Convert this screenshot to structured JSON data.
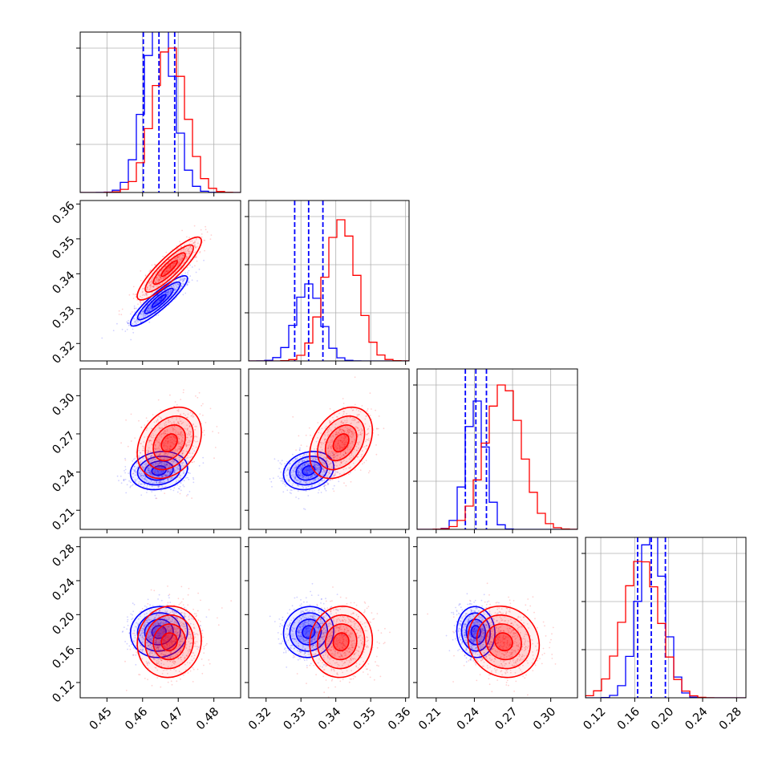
{
  "chart_data": {
    "type": "corner",
    "parameters": [
      {
        "range": [
          0.4425,
          0.4875
        ],
        "ticks": [
          0.45,
          0.46,
          0.47,
          0.48
        ],
        "tick_labels": [
          "0.45",
          "0.46",
          "0.47",
          "0.48"
        ]
      },
      {
        "range": [
          0.315,
          0.361
        ],
        "ticks": [
          0.32,
          0.33,
          0.34,
          0.35,
          0.36
        ],
        "tick_labels": [
          "0.32",
          "0.33",
          "0.34",
          "0.35",
          "0.36"
        ]
      },
      {
        "range": [
          0.195,
          0.321
        ],
        "ticks": [
          0.21,
          0.24,
          0.27,
          0.3
        ],
        "tick_labels": [
          "0.21",
          "0.24",
          "0.27",
          "0.30"
        ]
      },
      {
        "range": [
          0.102,
          0.291
        ],
        "ticks": [
          0.12,
          0.16,
          0.2,
          0.24,
          0.28
        ],
        "tick_labels": [
          "0.12",
          "0.16",
          "0.20",
          "0.24",
          "0.28"
        ]
      }
    ],
    "series": [
      {
        "color": "#0000ff",
        "means": [
          0.4646,
          0.3322,
          0.2412,
          0.1795
        ],
        "stds": [
          0.004,
          0.0036,
          0.0075,
          0.015
        ],
        "correlations": [
          [
            1,
            0.9,
            0.15,
            0.05
          ],
          [
            0.9,
            1,
            0.2,
            0.05
          ],
          [
            0.15,
            0.2,
            1,
            -0.05
          ],
          [
            0.05,
            0.05,
            -0.05,
            1
          ]
        ],
        "quantile_lines": [
          [
            0.4602,
            0.4646,
            0.469
          ],
          [
            0.3282,
            0.3322,
            0.3363
          ],
          [
            0.2329,
            0.2412,
            0.2495
          ],
          [
            0.1634,
            0.1795,
            0.1961
          ]
        ],
        "histogram_peak_heights": [
          1.1,
          0.48,
          0.8,
          1.03
        ]
      },
      {
        "color": "#ff0000",
        "means": [
          0.4675,
          0.3415,
          0.263,
          0.168
        ],
        "stds": [
          0.0045,
          0.0045,
          0.014,
          0.021
        ],
        "correlations": [
          [
            1,
            0.88,
            0.3,
            0.05
          ],
          [
            0.88,
            1,
            0.35,
            0.05
          ],
          [
            0.3,
            0.35,
            1,
            -0.1
          ],
          [
            0.05,
            0.05,
            -0.1,
            1
          ]
        ],
        "histogram_peak_heights": [
          0.9,
          0.88,
          0.9,
          0.85
        ]
      }
    ],
    "histogram_gridlines": [
      0.3,
      0.6,
      0.9
    ],
    "contour_levels": 3,
    "grid": true
  }
}
